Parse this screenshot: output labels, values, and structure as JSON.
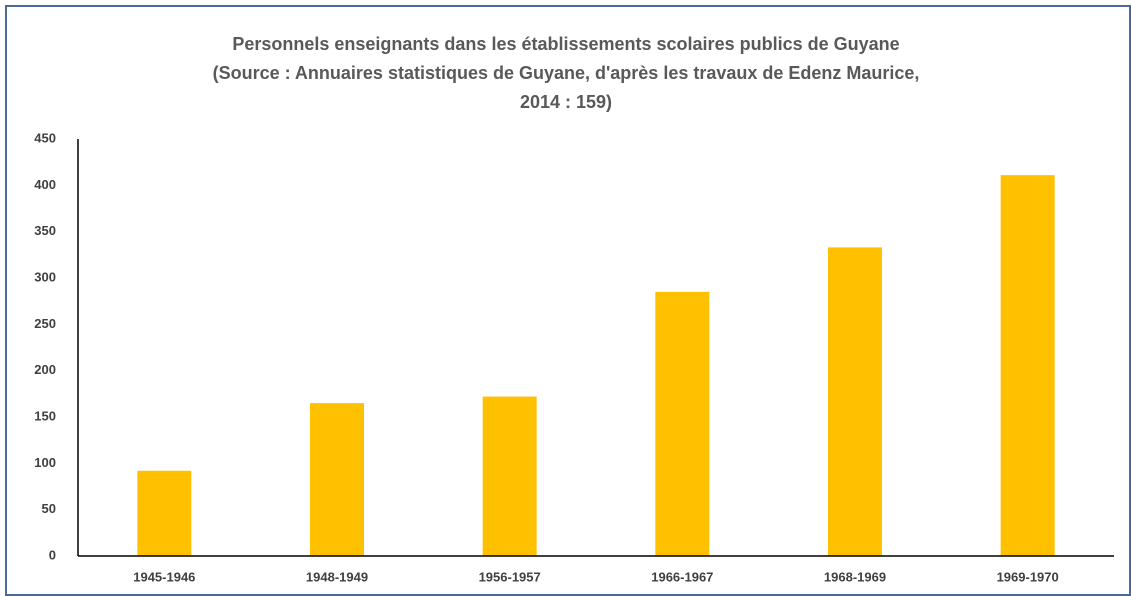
{
  "chart_data": {
    "type": "bar",
    "title": "Personnels enseignants dans les établissements scolaires publics de Guyane (Source : Annuaires statistiques de Guyane, d'après les travaux de Edenz Maurice, 2014 : 159)",
    "categories": [
      "1945-1946",
      "1948-1949",
      "1956-1957",
      "1966-1967",
      "1968-1969",
      "1969-1970"
    ],
    "values": [
      92,
      165,
      172,
      285,
      333,
      411
    ],
    "color": "#ffc000",
    "ylim": [
      0,
      450
    ],
    "yticks": [
      0,
      50,
      100,
      150,
      200,
      250,
      300,
      350,
      400,
      450
    ],
    "grid": false
  }
}
